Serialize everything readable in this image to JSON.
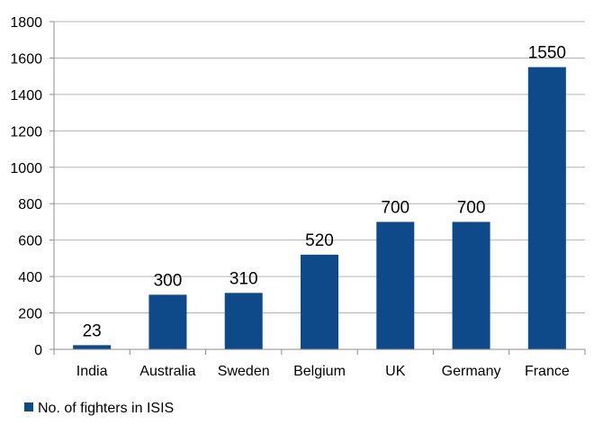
{
  "chart_data": {
    "type": "bar",
    "categories": [
      "India",
      "Australia",
      "Sweden",
      "Belgium",
      "UK",
      "Germany",
      "France"
    ],
    "series": [
      {
        "name": "No. of fighters in ISIS",
        "values": [
          23,
          300,
          310,
          520,
          700,
          700,
          1550
        ]
      }
    ],
    "data_labels": [
      "23",
      "300",
      "310",
      "520",
      "700",
      "700",
      "1550"
    ],
    "y_ticks": [
      "0",
      "200",
      "400",
      "600",
      "800",
      "1000",
      "1200",
      "1400",
      "1600",
      "1800"
    ],
    "ylim": [
      0,
      1800
    ],
    "grid": "horizontal",
    "legend_position": "bottom-left",
    "colors": {
      "bar": "#0e4a8a",
      "grid": "#b3b3b3",
      "axis": "#8c8c8c"
    }
  }
}
